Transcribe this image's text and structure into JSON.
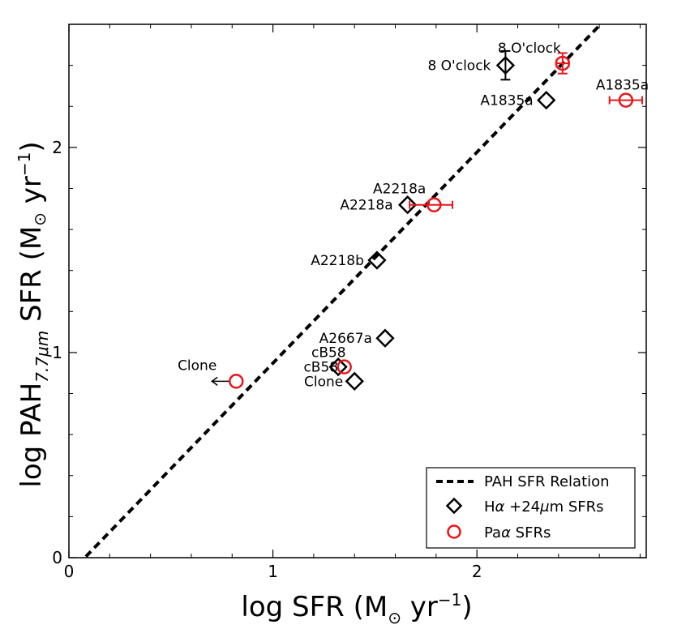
{
  "chart_data": {
    "type": "scatter",
    "xlabel_main": "log SFR (M",
    "xlabel_sub": "⊙",
    "xlabel_unit": " yr",
    "xlabel_exp": "−1",
    "xlabel_close": ")",
    "ylabel_main": "log PAH",
    "ylabel_sub": "7.7μm",
    "ylabel_mid": " SFR (M",
    "ylabel_sun": "⊙",
    "ylabel_unit": " yr",
    "ylabel_exp": "−1",
    "ylabel_close": ")",
    "xlim": [
      0,
      2.83
    ],
    "ylim": [
      0,
      2.6
    ],
    "xticks": [
      {
        "v": 0,
        "label": "0"
      },
      {
        "v": 1,
        "label": "1"
      },
      {
        "v": 2,
        "label": "2"
      }
    ],
    "yticks": [
      {
        "v": 0,
        "label": "0"
      },
      {
        "v": 1,
        "label": "1"
      },
      {
        "v": 2,
        "label": "2"
      }
    ],
    "relation_line": {
      "name": "PAH SFR Relation",
      "x": [
        0,
        2.83
      ],
      "y": [
        -0.08,
        2.83
      ]
    },
    "series": [
      {
        "name": "Hα+24μm SFRs",
        "legend_main": "H",
        "legend_alpha": "α",
        "legend_rest": " +24",
        "legend_mu": "μ",
        "legend_end": "m SFRs",
        "marker": "diamond",
        "color": "#000000",
        "points": [
          {
            "x": 2.14,
            "y": 2.4,
            "label": "8 O'clock",
            "yerr": 0.07
          },
          {
            "x": 2.34,
            "y": 2.23,
            "label": "A1835a"
          },
          {
            "x": 1.66,
            "y": 1.72,
            "label": "A2218a"
          },
          {
            "x": 1.51,
            "y": 1.45,
            "label": "A2218b"
          },
          {
            "x": 1.55,
            "y": 1.07,
            "label": "A2667a"
          },
          {
            "x": 1.32,
            "y": 0.93,
            "label": "cB58"
          },
          {
            "x": 1.4,
            "y": 0.86,
            "label": "Clone"
          }
        ]
      },
      {
        "name": "Paα SFRs",
        "legend_main": "Pa",
        "legend_alpha": "α",
        "legend_end": " SFRs",
        "marker": "circle",
        "color": "#e8161b",
        "points": [
          {
            "x": 2.42,
            "y": 2.41,
            "label": "8 O'clock",
            "xerr": 0.03,
            "yerr": 0.05
          },
          {
            "x": 2.73,
            "y": 2.23,
            "label": "A1835a",
            "xerr": 0.08
          },
          {
            "x": 1.79,
            "y": 1.72,
            "label": "A2218a",
            "xerr": 0.09,
            "xerr_left": 0.12
          },
          {
            "x": 1.35,
            "y": 0.93,
            "label": "cB58"
          },
          {
            "x": 0.82,
            "y": 0.86,
            "label": "Clone",
            "upper_limit_arrow": true
          }
        ]
      }
    ],
    "legend_position": "lower-right"
  }
}
